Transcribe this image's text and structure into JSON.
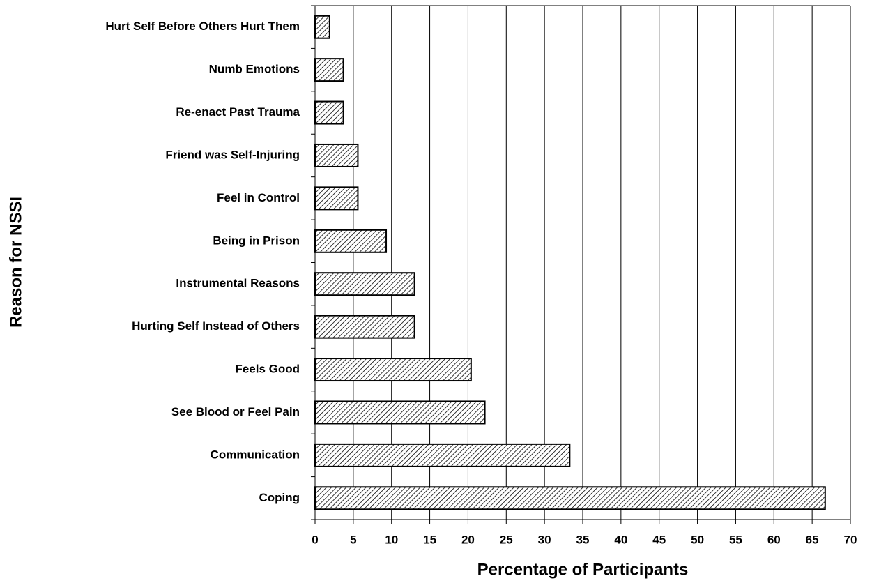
{
  "chart_data": {
    "type": "bar",
    "orientation": "horizontal",
    "x_label": "Percentage of Participants",
    "y_label": "Reason for NSSI",
    "categories": [
      "Hurt Self Before Others Hurt Them",
      "Numb Emotions",
      "Re-enact Past Trauma",
      "Friend was Self-Injuring",
      "Feel in Control",
      "Being in Prison",
      "Instrumental Reasons",
      "Hurting Self Instead of Others",
      "Feels Good",
      "See Blood or Feel Pain",
      "Communication",
      "Coping"
    ],
    "values": [
      1.9,
      3.7,
      3.7,
      5.6,
      5.6,
      9.3,
      13.0,
      13.0,
      20.4,
      22.2,
      33.3,
      66.7
    ],
    "color": "#000000",
    "xlim": [
      0,
      70
    ],
    "xticks": [
      0,
      5,
      10,
      15,
      20,
      25,
      30,
      35,
      40,
      45,
      50,
      55,
      60,
      65,
      70
    ],
    "grid": true
  }
}
